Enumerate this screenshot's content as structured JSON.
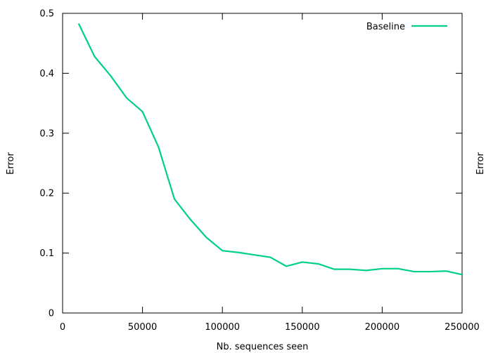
{
  "chart_data": {
    "type": "line",
    "title": "",
    "xlabel": "Nb. sequences seen",
    "ylabel": "Error",
    "ylabel_right": "Error",
    "xlim": [
      0,
      250000
    ],
    "ylim": [
      0,
      0.5
    ],
    "x_ticks": [
      0,
      50000,
      100000,
      150000,
      200000,
      250000
    ],
    "x_tick_labels": [
      "0",
      "50000",
      "100000",
      "150000",
      "200000",
      "250000"
    ],
    "y_ticks": [
      0,
      0.1,
      0.2,
      0.3,
      0.4,
      0.5
    ],
    "y_tick_labels": [
      "0",
      "0.1",
      "0.2",
      "0.3",
      "0.4",
      "0.5"
    ],
    "grid": false,
    "legend_position": "top-right",
    "series": [
      {
        "name": "Baseline",
        "color": "#00d084",
        "x": [
          10000,
          20000,
          30000,
          40000,
          50000,
          60000,
          70000,
          80000,
          90000,
          100000,
          110000,
          120000,
          130000,
          140000,
          150000,
          160000,
          170000,
          180000,
          190000,
          200000,
          210000,
          220000,
          230000,
          240000,
          250000
        ],
        "y": [
          0.483,
          0.428,
          0.396,
          0.359,
          0.336,
          0.277,
          0.19,
          0.156,
          0.126,
          0.104,
          0.101,
          0.097,
          0.093,
          0.078,
          0.085,
          0.082,
          0.073,
          0.073,
          0.071,
          0.074,
          0.074,
          0.069,
          0.069,
          0.07,
          0.064
        ]
      }
    ]
  }
}
